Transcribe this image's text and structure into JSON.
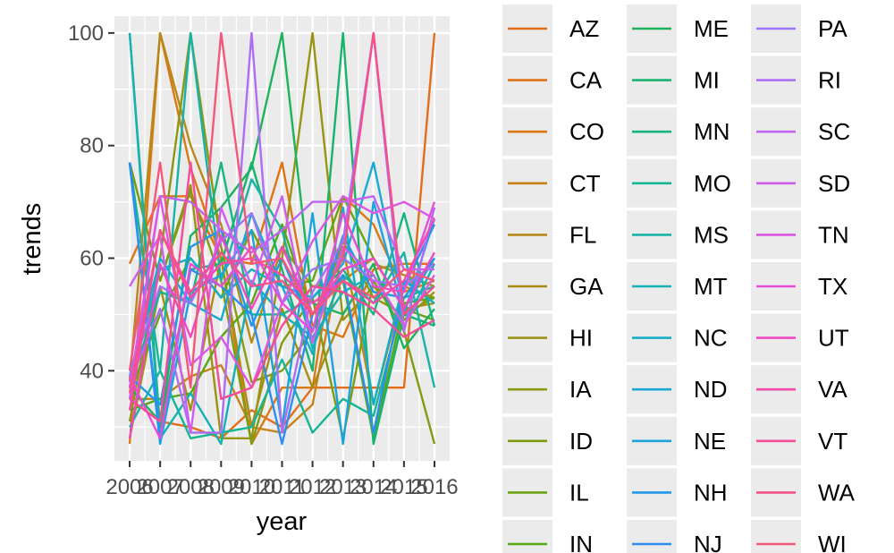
{
  "chart_data": {
    "type": "line",
    "xlabel": "year",
    "ylabel": "trends",
    "x": [
      2006,
      2007,
      2008,
      2009,
      2010,
      2011,
      2012,
      2013,
      2014,
      2015,
      2016
    ],
    "x_tick_labels": [
      "2006",
      "2007",
      "2008",
      "2009",
      "2010",
      "2011",
      "2012",
      "2013",
      "2014",
      "2015",
      "2016"
    ],
    "y_ticks": [
      40,
      60,
      80,
      100
    ],
    "y_tick_labels": [
      "40",
      "60",
      "80",
      "100"
    ],
    "xlim": [
      2005.5,
      2016.5
    ],
    "ylim": [
      24,
      103
    ],
    "grid": true,
    "legend_position": "right",
    "series": [
      {
        "name": "AZ",
        "color": "#e36e1a",
        "values": [
          35,
          31,
          30,
          28,
          33,
          30,
          37,
          37,
          37,
          37,
          100
        ]
      },
      {
        "name": "CA",
        "color": "#e07313",
        "values": [
          59,
          71,
          71,
          60,
          59,
          77,
          48,
          46,
          58,
          59,
          59
        ]
      },
      {
        "name": "CO",
        "color": "#d97a14",
        "values": [
          27,
          100,
          76,
          60,
          27,
          37,
          37,
          71,
          66,
          54,
          56
        ]
      },
      {
        "name": "CT",
        "color": "#c98217",
        "values": [
          35,
          35,
          39,
          41,
          30,
          29,
          34,
          62,
          34,
          55,
          53
        ]
      },
      {
        "name": "FL",
        "color": "#b88819",
        "values": [
          38,
          100,
          80,
          66,
          45,
          62,
          55,
          56,
          60,
          51,
          52
        ]
      },
      {
        "name": "GA",
        "color": "#a88e17",
        "values": [
          28,
          55,
          33,
          60,
          30,
          51,
          37,
          50,
          59,
          57,
          55
        ]
      },
      {
        "name": "HI",
        "color": "#9a9315",
        "values": [
          77,
          56,
          73,
          28,
          28,
          60,
          100,
          49,
          55,
          49,
          54
        ]
      },
      {
        "name": "IA",
        "color": "#8c9815",
        "values": [
          31,
          60,
          100,
          62,
          38,
          40,
          47,
          63,
          53,
          50,
          53
        ]
      },
      {
        "name": "ID",
        "color": "#7e9c13",
        "values": [
          77,
          56,
          72,
          56,
          27,
          45,
          53,
          28,
          56,
          47,
          27
        ]
      },
      {
        "name": "IL",
        "color": "#6aa313",
        "values": [
          36,
          50,
          60,
          53,
          65,
          55,
          56,
          71,
          60,
          51,
          49
        ]
      },
      {
        "name": "IN",
        "color": "#56a914",
        "values": [
          33,
          35,
          36,
          46,
          52,
          66,
          50,
          56,
          28,
          52,
          53
        ]
      },
      {
        "name": "ME",
        "color": "#1eb35a",
        "values": [
          37,
          31,
          64,
          69,
          76,
          100,
          52,
          50,
          59,
          44,
          51
        ]
      },
      {
        "name": "MI",
        "color": "#17b36f",
        "values": [
          100,
          30,
          58,
          59,
          77,
          58,
          40,
          100,
          27,
          50,
          48
        ]
      },
      {
        "name": "MN",
        "color": "#16b583",
        "values": [
          37,
          54,
          52,
          77,
          50,
          50,
          53,
          58,
          50,
          68,
          48
        ]
      },
      {
        "name": "MO",
        "color": "#16b596",
        "values": [
          77,
          40,
          28,
          29,
          30,
          42,
          29,
          35,
          32,
          53,
          55
        ]
      },
      {
        "name": "MS",
        "color": "#17b3a6",
        "values": [
          30,
          40,
          100,
          56,
          74,
          65,
          44,
          57,
          52,
          61,
          37
        ]
      },
      {
        "name": "MT",
        "color": "#14b1b6",
        "values": [
          100,
          28,
          36,
          27,
          56,
          50,
          46,
          54,
          57,
          48,
          59
        ]
      },
      {
        "name": "NC",
        "color": "#16aec6",
        "values": [
          39,
          58,
          60,
          53,
          58,
          55,
          43,
          69,
          34,
          56,
          52
        ]
      },
      {
        "name": "ND",
        "color": "#1aa9d4",
        "values": [
          39,
          60,
          52,
          49,
          68,
          55,
          53,
          59,
          77,
          51,
          60
        ]
      },
      {
        "name": "NE",
        "color": "#1ca3df",
        "values": [
          77,
          27,
          54,
          57,
          65,
          30,
          68,
          27,
          70,
          50,
          67
        ]
      },
      {
        "name": "NH",
        "color": "#2198e8",
        "values": [
          39,
          34,
          62,
          65,
          48,
          60,
          47,
          64,
          54,
          53,
          60
        ]
      },
      {
        "name": "NJ",
        "color": "#2d8ef1",
        "values": [
          77,
          28,
          58,
          55,
          50,
          27,
          50,
          57,
          29,
          55,
          66
        ]
      },
      {
        "name": "PA",
        "color": "#9b75f5",
        "values": [
          39,
          55,
          52,
          63,
          68,
          52,
          58,
          60,
          56,
          55,
          59
        ]
      },
      {
        "name": "RI",
        "color": "#ad6ef5",
        "values": [
          38,
          51,
          29,
          29,
          100,
          29,
          54,
          63,
          100,
          47,
          69
        ]
      },
      {
        "name": "SC",
        "color": "#c065f2",
        "values": [
          35,
          71,
          70,
          65,
          61,
          65,
          70,
          70,
          71,
          58,
          58
        ]
      },
      {
        "name": "SD",
        "color": "#cf5ded",
        "values": [
          55,
          64,
          29,
          69,
          55,
          71,
          45,
          62,
          57,
          48,
          57
        ]
      },
      {
        "name": "TN",
        "color": "#dc57e5",
        "values": [
          37,
          71,
          41,
          46,
          37,
          52,
          63,
          71,
          68,
          70,
          67
        ]
      },
      {
        "name": "TX",
        "color": "#e64ed8",
        "values": [
          39,
          28,
          59,
          55,
          62,
          52,
          47,
          68,
          55,
          54,
          70
        ]
      },
      {
        "name": "UT",
        "color": "#ee48c4",
        "values": [
          28,
          59,
          46,
          64,
          51,
          62,
          50,
          58,
          60,
          51,
          61
        ]
      },
      {
        "name": "VA",
        "color": "#f34aac",
        "values": [
          33,
          65,
          53,
          59,
          60,
          57,
          52,
          56,
          52,
          56,
          67
        ]
      },
      {
        "name": "VT",
        "color": "#f54c98",
        "values": [
          35,
          31,
          77,
          35,
          37,
          48,
          55,
          54,
          51,
          46,
          49
        ]
      },
      {
        "name": "WA",
        "color": "#f5508a",
        "values": [
          36,
          65,
          54,
          61,
          55,
          56,
          50,
          60,
          100,
          50,
          55
        ]
      },
      {
        "name": "WI",
        "color": "#f3587a",
        "values": [
          40,
          77,
          37,
          100,
          59,
          60,
          50,
          56,
          53,
          58,
          56
        ]
      }
    ]
  }
}
